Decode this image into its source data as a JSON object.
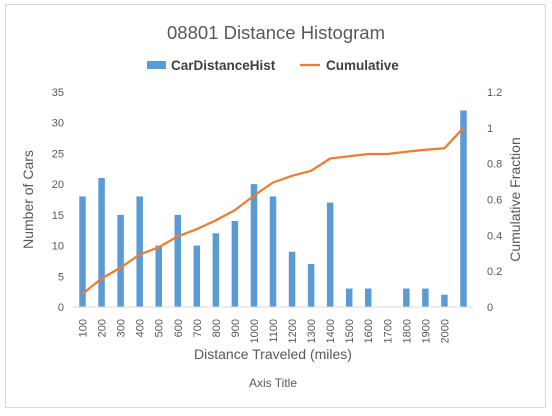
{
  "chart_data": {
    "type": "bar",
    "title": "08801 Distance Histogram",
    "xlabel": "Distance Traveled (miles)",
    "ylabel": "Number of Cars",
    "y2label": "Cumulative Fraction",
    "secondary_axis_title": "Axis Title",
    "categories": [
      "100",
      "200",
      "300",
      "400",
      "500",
      "600",
      "700",
      "800",
      "900",
      "1000",
      "1100",
      "1200",
      "1300",
      "1400",
      "1500",
      "1600",
      "1700",
      "1800",
      "1900",
      "2000",
      ""
    ],
    "ylim": [
      0,
      35
    ],
    "yticks": [
      0,
      5,
      10,
      15,
      20,
      25,
      30,
      35
    ],
    "y2lim": [
      0,
      1.2
    ],
    "y2ticks": [
      0,
      0.2,
      0.4,
      0.6,
      0.8,
      1,
      1.2
    ],
    "legend_position": "top",
    "grid": false,
    "series": [
      {
        "name": "CarDistanceHist",
        "type": "bar",
        "axis": "primary",
        "color": "#5b9bd5",
        "values": [
          18,
          21,
          15,
          18,
          10,
          15,
          10,
          12,
          14,
          20,
          18,
          9,
          7,
          17,
          3,
          3,
          0,
          3,
          3,
          2,
          32
        ]
      },
      {
        "name": "Cumulative",
        "type": "line",
        "axis": "secondary",
        "color": "#ed7d31",
        "values": [
          0.073,
          0.159,
          0.22,
          0.293,
          0.333,
          0.394,
          0.435,
          0.484,
          0.541,
          0.622,
          0.695,
          0.732,
          0.76,
          0.829,
          0.841,
          0.854,
          0.854,
          0.866,
          0.878,
          0.886,
          1.0
        ]
      }
    ]
  }
}
